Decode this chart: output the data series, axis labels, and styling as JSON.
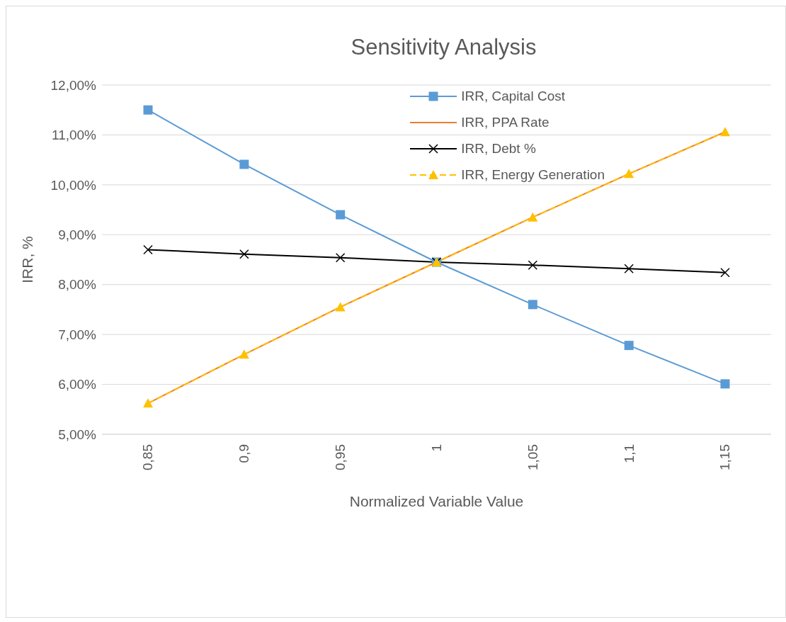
{
  "chart_data": {
    "type": "line",
    "title": "Sensitivity Analysis",
    "xlabel": "Normalized Variable Value",
    "ylabel": "IRR, %",
    "categories": [
      "0,85",
      "0,9",
      "0,95",
      "1",
      "1,05",
      "1,1",
      "1,15"
    ],
    "series": [
      {
        "name": "IRR, Capital Cost",
        "color": "#5b9bd5",
        "marker": "square",
        "line_style": "solid",
        "values": [
          11.5,
          10.41,
          9.4,
          8.45,
          7.6,
          6.78,
          6.01
        ]
      },
      {
        "name": "IRR, PPA Rate",
        "color": "#ed7d31",
        "marker": "none",
        "line_style": "solid",
        "values": [
          5.62,
          6.6,
          7.55,
          8.45,
          9.35,
          10.22,
          11.06
        ]
      },
      {
        "name": "IRR, Debt %",
        "color": "#000000",
        "marker": "cross",
        "line_style": "solid",
        "values": [
          8.7,
          8.61,
          8.54,
          8.45,
          8.39,
          8.32,
          8.24
        ]
      },
      {
        "name": "IRR, Energy Generation",
        "color": "#ffc000",
        "marker": "triangle",
        "line_style": "dashed",
        "values": [
          5.62,
          6.6,
          7.55,
          8.45,
          9.35,
          10.22,
          11.06
        ]
      }
    ],
    "ylim": [
      5,
      12
    ],
    "yticks": [
      {
        "value": 5,
        "label": "5,00%"
      },
      {
        "value": 6,
        "label": "6,00%"
      },
      {
        "value": 7,
        "label": "7,00%"
      },
      {
        "value": 8,
        "label": "8,00%"
      },
      {
        "value": 9,
        "label": "9,00%"
      },
      {
        "value": 10,
        "label": "10,00%"
      },
      {
        "value": 11,
        "label": "11,00%"
      },
      {
        "value": 12,
        "label": "12,00%"
      }
    ],
    "grid": "y",
    "legend": "top right"
  }
}
